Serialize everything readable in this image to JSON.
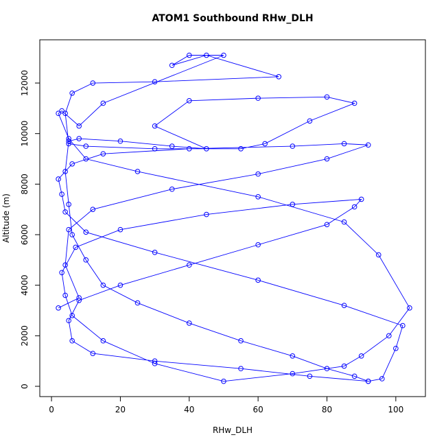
{
  "chart_data": {
    "type": "line",
    "title": "ATOM1 Southbound RHw_DLH",
    "x_label": "RHw_DLH",
    "y_label": "Altitude (m)",
    "marker": "circle",
    "x": [
      92,
      88,
      80,
      70,
      55,
      40,
      25,
      15,
      10,
      6,
      5,
      4,
      5,
      8,
      20,
      35,
      45,
      30,
      40,
      60,
      80,
      88,
      75,
      62,
      55,
      30,
      10,
      5,
      4,
      6,
      12,
      30,
      66,
      45,
      35,
      40,
      50,
      15,
      8,
      3,
      2,
      5,
      10,
      25,
      60,
      85,
      95,
      104,
      98,
      90,
      85,
      70,
      50,
      30,
      15,
      6,
      4,
      3,
      7,
      20,
      45,
      70,
      90,
      88,
      80,
      60,
      40,
      20,
      8,
      5,
      6,
      12,
      30,
      55,
      75,
      92,
      96,
      100,
      102,
      85,
      60,
      30,
      10,
      4,
      3,
      2,
      6,
      15,
      40,
      70,
      85,
      92,
      80,
      60,
      35,
      12,
      5,
      4,
      8,
      2
    ],
    "series": [
      {
        "color": "#0000ff",
        "values": [
          200,
          400,
          700,
          1200,
          1800,
          2500,
          3300,
          4000,
          5000,
          6000,
          7200,
          8500,
          9700,
          9800,
          9700,
          9500,
          9400,
          10300,
          11300,
          11400,
          11450,
          11200,
          10500,
          9600,
          9400,
          9400,
          9500,
          9600,
          10800,
          11600,
          12000,
          12050,
          12250,
          13100,
          12700,
          13100,
          13100,
          11200,
          10300,
          10900,
          10800,
          9800,
          9000,
          8500,
          7500,
          6500,
          5200,
          3100,
          2000,
          1200,
          800,
          500,
          200,
          900,
          1800,
          2800,
          3600,
          4500,
          5500,
          6200,
          6800,
          7200,
          7400,
          7100,
          6400,
          5600,
          4800,
          4000,
          3400,
          2600,
          1800,
          1300,
          1000,
          700,
          400,
          200,
          300,
          1500,
          2400,
          3200,
          4200,
          5300,
          6100,
          6900,
          7600,
          8200,
          8800,
          9200,
          9400,
          9500,
          9600,
          9550,
          9000,
          8400,
          7800,
          7000,
          6200,
          4800,
          3500,
          3100
        ]
      }
    ],
    "xlim": [
      -3.4,
      108.6
    ],
    "ylim": [
      -407,
      13711
    ],
    "xticks": [
      0,
      20,
      40,
      60,
      80,
      100
    ],
    "yticks": [
      0,
      2000,
      4000,
      6000,
      8000,
      10000,
      12000
    ]
  }
}
